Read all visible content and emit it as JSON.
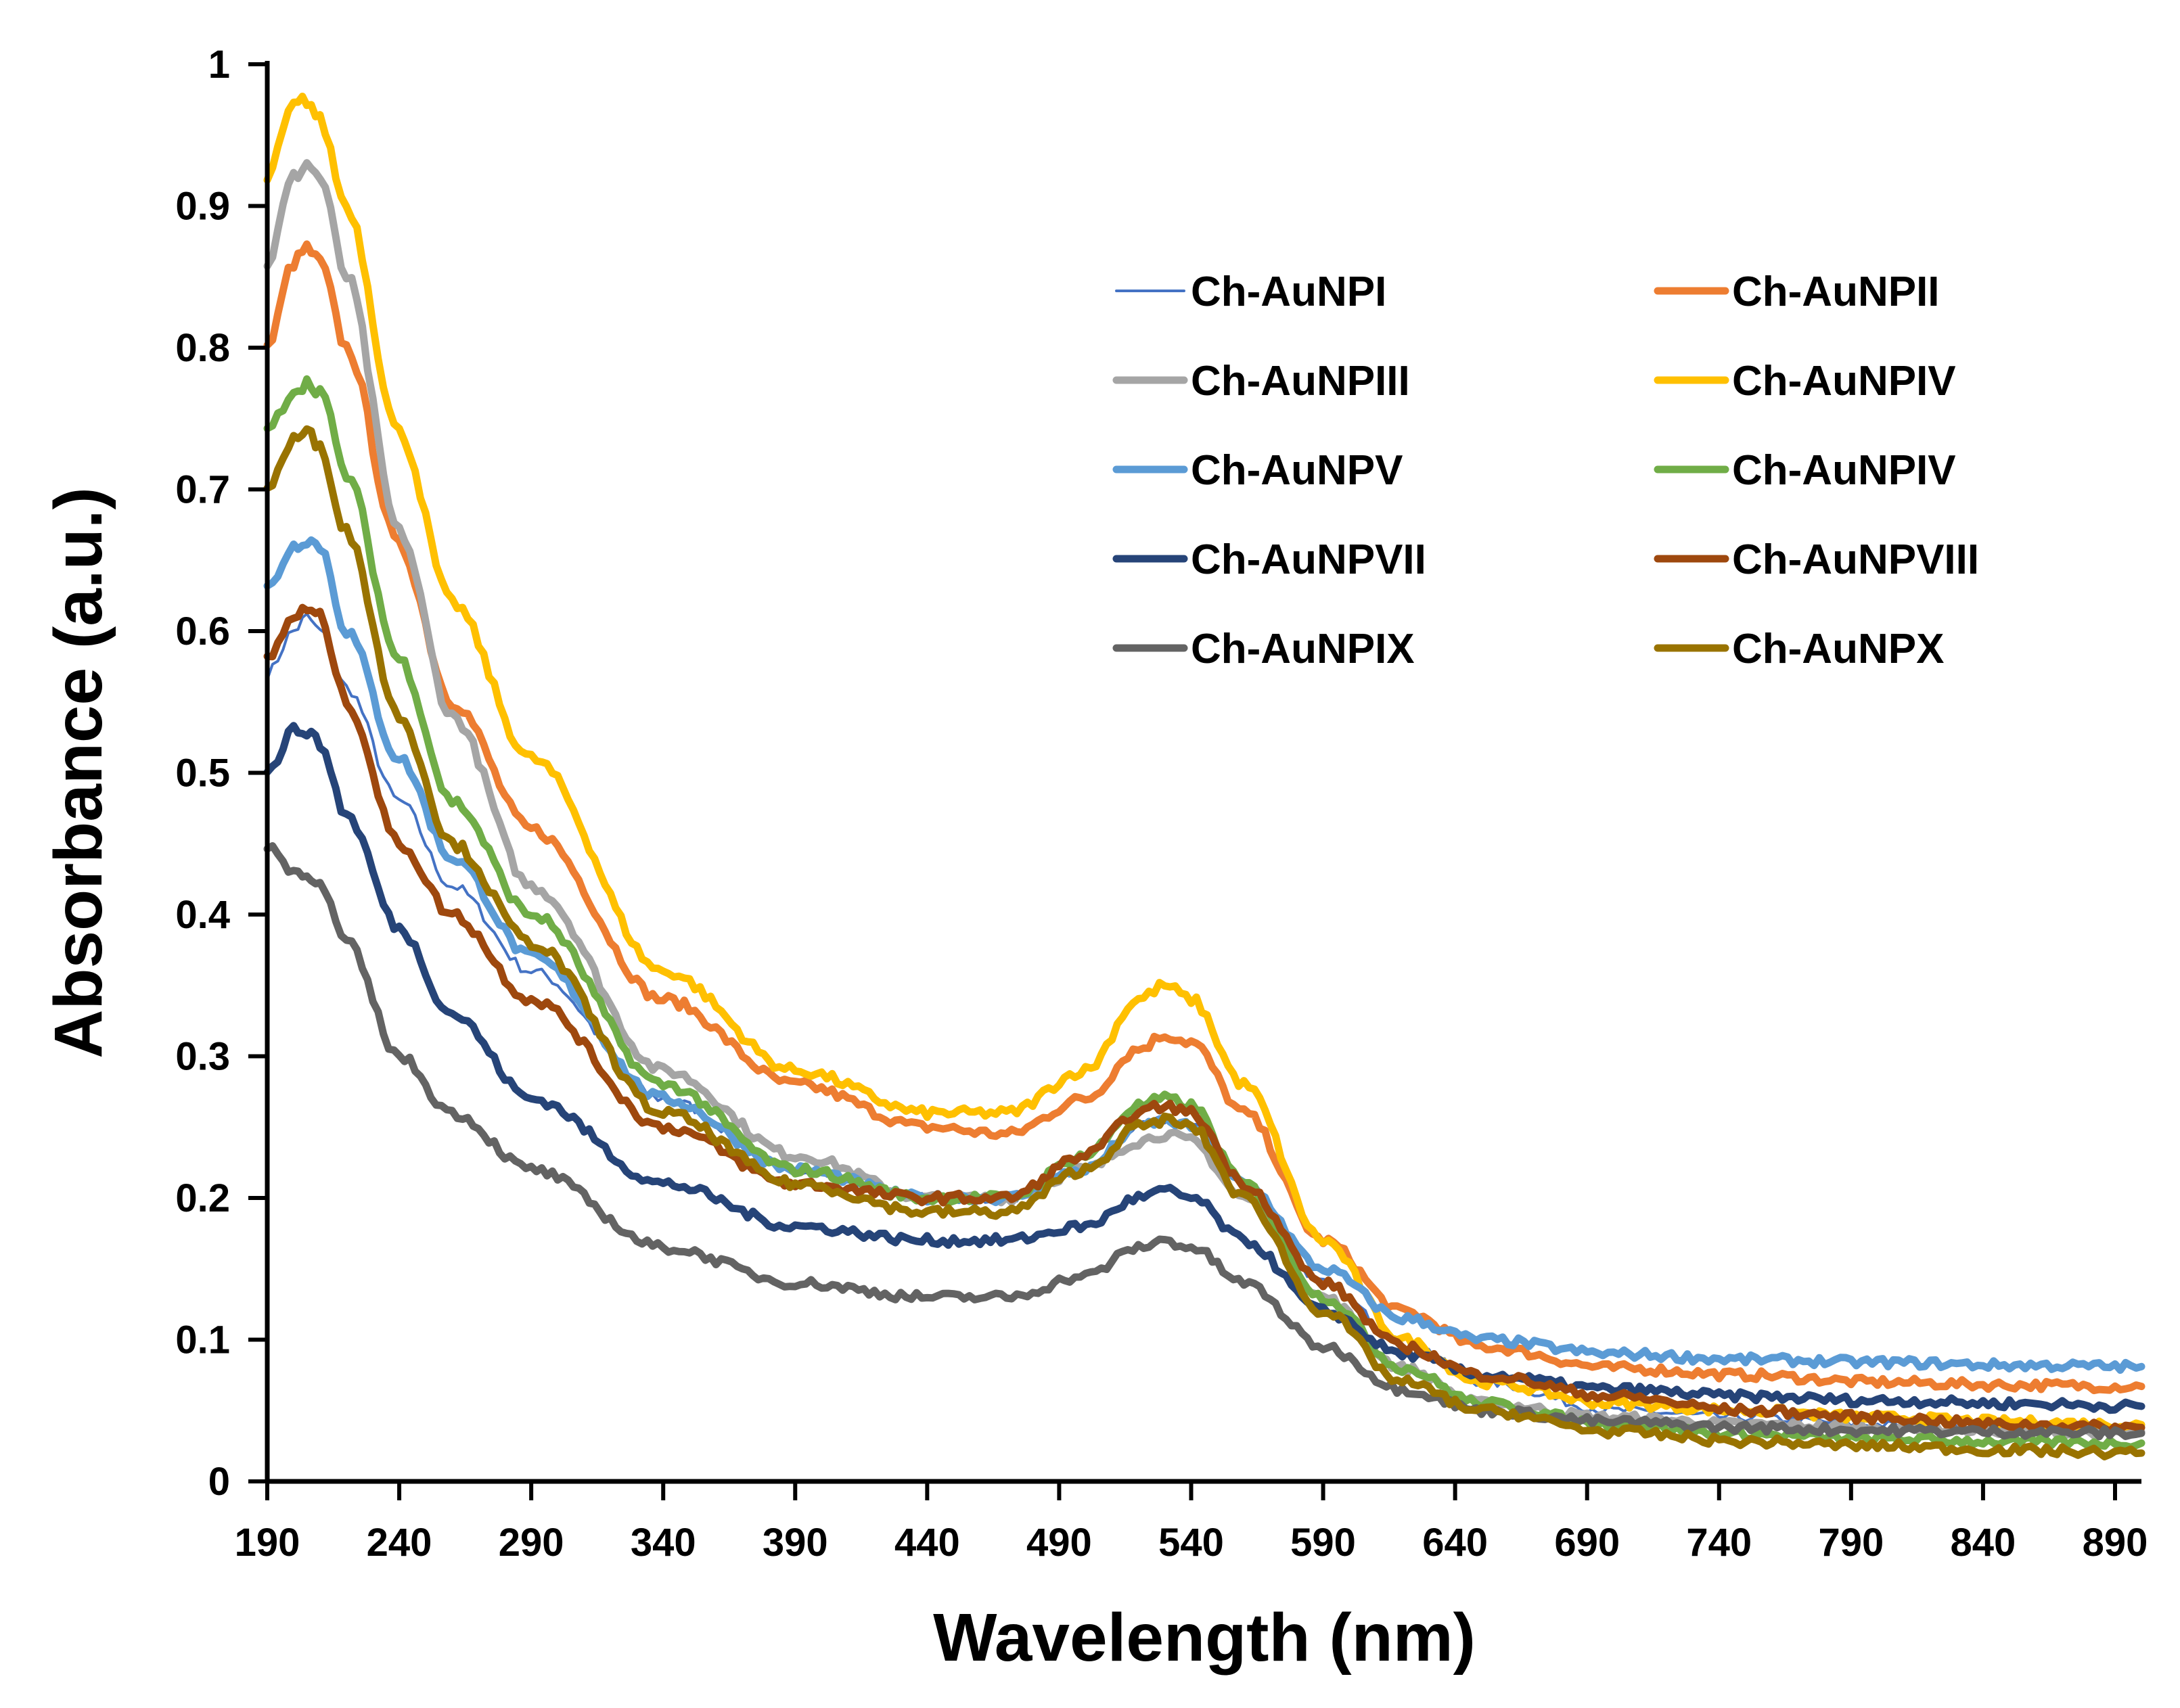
{
  "chart_data": {
    "type": "line",
    "title": "",
    "xlabel": "Wavelength (nm)",
    "ylabel": "Absorbance (a.u.)",
    "xlim": [
      190,
      900
    ],
    "ylim": [
      0,
      1
    ],
    "x_ticks": [
      190,
      240,
      290,
      340,
      390,
      440,
      490,
      540,
      590,
      640,
      690,
      740,
      790,
      840,
      890
    ],
    "y_ticks": [
      0,
      0.1,
      0.2,
      0.3,
      0.4,
      0.5,
      0.6,
      0.7,
      0.8,
      0.9,
      1
    ],
    "y_tick_labels": [
      "0",
      "0.1",
      "0.2",
      "0.3",
      "0.4",
      "0.5",
      "0.6",
      "0.7",
      "0.8",
      "0.9",
      "1"
    ],
    "grid": false,
    "legend_position": "top-right",
    "x": [
      190,
      200,
      205,
      210,
      220,
      240,
      260,
      290,
      340,
      390,
      440,
      470,
      500,
      520,
      530,
      540,
      560,
      590,
      620,
      650,
      700,
      750,
      800,
      850,
      900
    ],
    "series": [
      {
        "name": "Ch-AuNPI",
        "color": "#4472C4",
        "stroke_width": 4,
        "values": [
          0.57,
          0.6,
          0.61,
          0.6,
          0.56,
          0.48,
          0.42,
          0.36,
          0.27,
          0.22,
          0.2,
          0.2,
          0.22,
          0.25,
          0.255,
          0.25,
          0.21,
          0.14,
          0.1,
          0.07,
          0.05,
          0.045,
          0.04,
          0.035,
          0.035
        ]
      },
      {
        "name": "Ch-AuNPII",
        "color": "#ED7D31",
        "stroke_width": 11,
        "values": [
          0.8,
          0.86,
          0.87,
          0.86,
          0.8,
          0.66,
          0.55,
          0.46,
          0.34,
          0.28,
          0.25,
          0.245,
          0.27,
          0.305,
          0.315,
          0.31,
          0.26,
          0.17,
          0.12,
          0.095,
          0.08,
          0.075,
          0.07,
          0.068,
          0.067
        ]
      },
      {
        "name": "Ch-AuNPIII",
        "color": "#A5A5A5",
        "stroke_width": 11,
        "values": [
          0.86,
          0.92,
          0.93,
          0.92,
          0.85,
          0.67,
          0.54,
          0.42,
          0.29,
          0.23,
          0.2,
          0.2,
          0.22,
          0.24,
          0.245,
          0.24,
          0.2,
          0.13,
          0.08,
          0.055,
          0.045,
          0.04,
          0.038,
          0.036,
          0.035
        ]
      },
      {
        "name": "Ch-AuNPIV",
        "color": "#FFC000",
        "stroke_width": 11,
        "values": [
          0.92,
          0.97,
          0.975,
          0.96,
          0.9,
          0.74,
          0.62,
          0.51,
          0.36,
          0.29,
          0.26,
          0.26,
          0.29,
          0.34,
          0.35,
          0.34,
          0.28,
          0.17,
          0.1,
          0.07,
          0.055,
          0.05,
          0.045,
          0.042,
          0.04
        ]
      },
      {
        "name": "Ch-AuNPV",
        "color": "#5B9BD5",
        "stroke_width": 11,
        "values": [
          0.63,
          0.66,
          0.665,
          0.66,
          0.6,
          0.51,
          0.44,
          0.37,
          0.27,
          0.22,
          0.2,
          0.2,
          0.22,
          0.25,
          0.255,
          0.25,
          0.21,
          0.15,
          0.115,
          0.1,
          0.09,
          0.086,
          0.084,
          0.082,
          0.081
        ]
      },
      {
        "name": "Ch-AuNPIV",
        "color": "#70AD47",
        "stroke_width": 11,
        "values": [
          0.74,
          0.77,
          0.775,
          0.77,
          0.71,
          0.58,
          0.48,
          0.4,
          0.28,
          0.22,
          0.2,
          0.2,
          0.23,
          0.265,
          0.27,
          0.265,
          0.21,
          0.13,
          0.08,
          0.055,
          0.04,
          0.033,
          0.03,
          0.028,
          0.027
        ]
      },
      {
        "name": "Ch-AuNPVII",
        "color": "#264478",
        "stroke_width": 11,
        "values": [
          0.5,
          0.53,
          0.53,
          0.52,
          0.47,
          0.39,
          0.33,
          0.27,
          0.21,
          0.18,
          0.17,
          0.17,
          0.18,
          0.2,
          0.205,
          0.2,
          0.17,
          0.12,
          0.09,
          0.075,
          0.065,
          0.06,
          0.057,
          0.055,
          0.053
        ]
      },
      {
        "name": "Ch-AuNPVIII",
        "color": "#9E480E",
        "stroke_width": 11,
        "values": [
          0.58,
          0.61,
          0.615,
          0.61,
          0.55,
          0.45,
          0.4,
          0.34,
          0.25,
          0.21,
          0.2,
          0.2,
          0.23,
          0.26,
          0.265,
          0.26,
          0.21,
          0.14,
          0.095,
          0.075,
          0.06,
          0.05,
          0.045,
          0.04,
          0.038
        ]
      },
      {
        "name": "Ch-AuNPIX",
        "color": "#636363",
        "stroke_width": 11,
        "values": [
          0.45,
          0.43,
          0.43,
          0.42,
          0.38,
          0.3,
          0.26,
          0.22,
          0.165,
          0.14,
          0.13,
          0.13,
          0.145,
          0.165,
          0.17,
          0.165,
          0.14,
          0.095,
          0.065,
          0.05,
          0.042,
          0.038,
          0.036,
          0.035,
          0.034
        ]
      },
      {
        "name": "Ch-AuNPX",
        "color": "#997300",
        "stroke_width": 11,
        "values": [
          0.7,
          0.735,
          0.74,
          0.73,
          0.67,
          0.54,
          0.45,
          0.38,
          0.26,
          0.21,
          0.19,
          0.19,
          0.22,
          0.25,
          0.255,
          0.25,
          0.2,
          0.12,
          0.07,
          0.05,
          0.035,
          0.028,
          0.025,
          0.022,
          0.02
        ]
      }
    ]
  }
}
